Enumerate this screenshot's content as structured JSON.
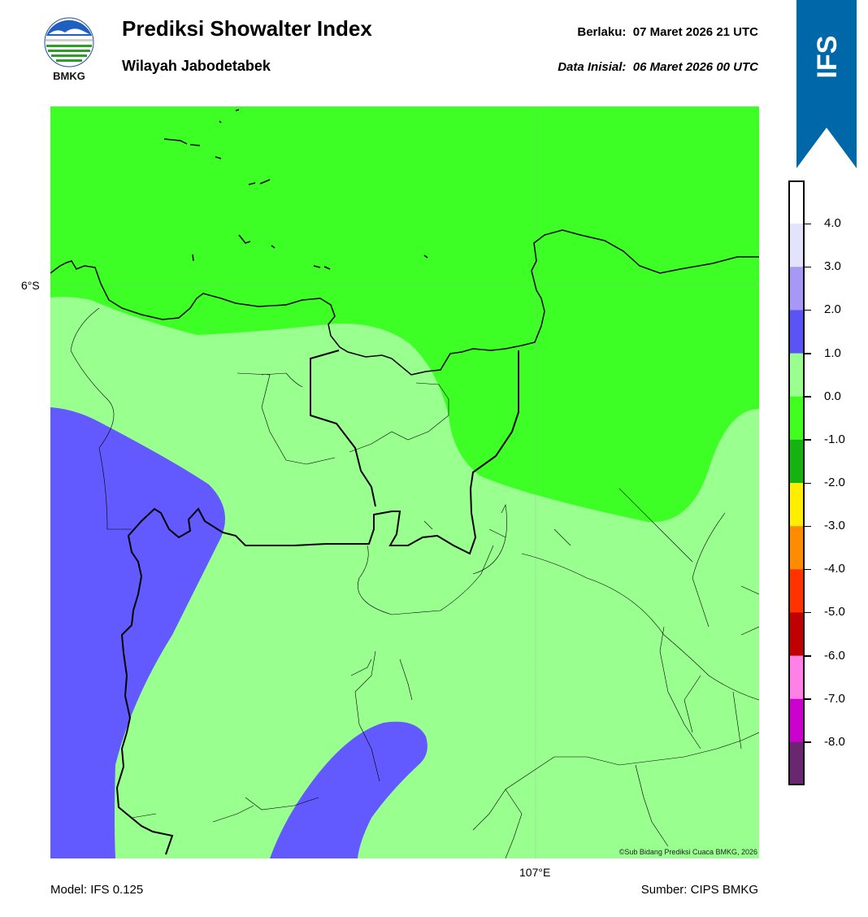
{
  "header": {
    "title": "Prediksi Showalter Index",
    "subtitle": "Wilayah Jabodetabek",
    "valid_label": "Berlaku:",
    "valid_time": "07 Maret 2026 21 UTC",
    "init_label": "Data Inisial:",
    "init_time": "06 Maret 2026 00 UTC"
  },
  "logo": {
    "text": "BMKG",
    "icon": "bmkg-logo-icon"
  },
  "ribbon": {
    "text": "IFS",
    "color": "#0067a8"
  },
  "map": {
    "lat_label": "6°S",
    "lon_label": "107°E",
    "credit": "©Sub Bidang Prediksi Cuaca BMKG, 2026",
    "fill_colors": {
      "land_light_green": "#99ff8f",
      "bright_green": "#3dff26",
      "blue": "#6259ff"
    }
  },
  "colorbar": {
    "labels": [
      "4.0",
      "3.0",
      "2.0",
      "1.0",
      "0.0",
      "-1.0",
      "-2.0",
      "-3.0",
      "-4.0",
      "-5.0",
      "-6.0",
      "-7.0",
      "-8.0"
    ],
    "colors": [
      "#ffffff",
      "#e3e3fb",
      "#a698f4",
      "#5c53f7",
      "#99ff8f",
      "#40ff1e",
      "#14b30f",
      "#ffee00",
      "#ff8c00",
      "#ff3300",
      "#c00000",
      "#ff80e6",
      "#cc00cc",
      "#6b2670"
    ]
  },
  "footer": {
    "model": "Model: IFS 0.125",
    "source": "Sumber: CIPS BMKG"
  }
}
